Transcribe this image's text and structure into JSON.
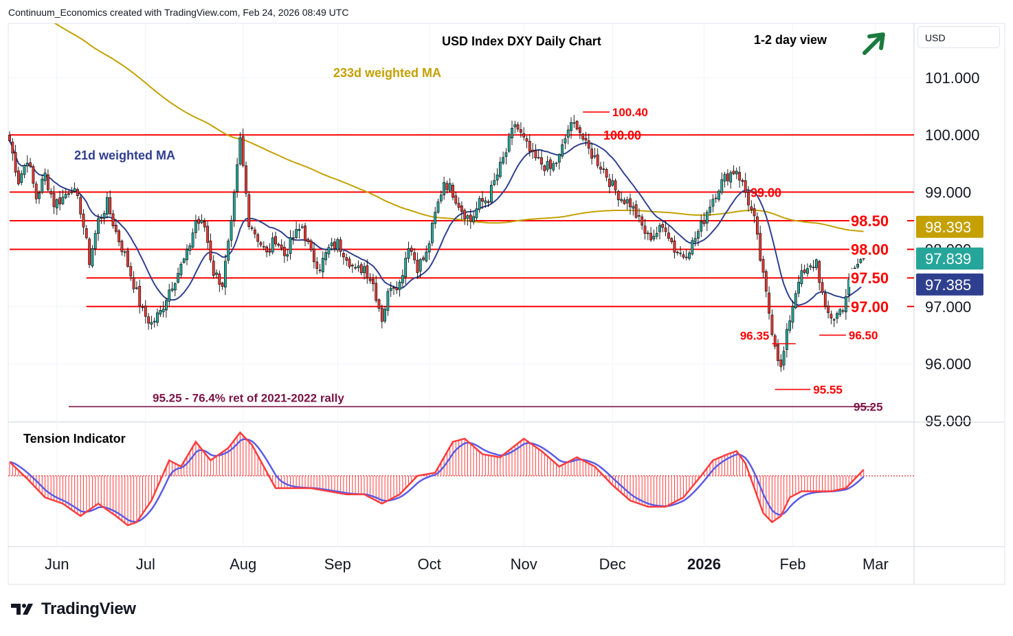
{
  "attribution": "Continuum_Economics created with TradingView.com, Feb 24, 2026 08:49 UTC",
  "brand": {
    "name": "TradingView",
    "logo_icon": "tradingview-logo-icon"
  },
  "symbol": "USD",
  "colors": {
    "up": "#26a69a",
    "down": "#e53935",
    "ma21": "#2f3f8f",
    "ma233": "#c4a000",
    "level": "#ff0000",
    "retrace": "#7b1245",
    "tension_fast": "#ff3b3b",
    "tension_slow": "#5a5ae6"
  },
  "chart_data": {
    "type": "candlestick",
    "title": "USD Index DXY Daily Chart",
    "view_label": "1-2 day view",
    "view_icon": "up-arrow-icon",
    "ylim": [
      95.0,
      101.7
    ],
    "y_ticks": [
      "101.000",
      "100.000",
      "99.000",
      "96.000",
      "95.000"
    ],
    "x_ticks": [
      {
        "label": "Jun",
        "i": 16,
        "bold": false
      },
      {
        "label": "Jul",
        "i": 46,
        "bold": false
      },
      {
        "label": "Aug",
        "i": 79,
        "bold": false
      },
      {
        "label": "Sep",
        "i": 111,
        "bold": false
      },
      {
        "label": "Oct",
        "i": 142,
        "bold": false
      },
      {
        "label": "Nov",
        "i": 174,
        "bold": false
      },
      {
        "label": "Dec",
        "i": 204,
        "bold": false
      },
      {
        "label": "2026",
        "i": 235,
        "bold": true
      },
      {
        "label": "Feb",
        "i": 265,
        "bold": false
      },
      {
        "label": "Mar",
        "i": 293,
        "bold": false
      }
    ],
    "price_badges": [
      {
        "value": "98.393",
        "bg": "#c4a000"
      },
      {
        "value": "97.839",
        "bg": "#26a69a"
      },
      {
        "value": "97.385",
        "bg": "#2f3f8f"
      }
    ],
    "levels": [
      {
        "value": 100.0,
        "label": "100.00",
        "i_start": 0,
        "label_side": "right",
        "label_at_axis": false
      },
      {
        "value": 99.0,
        "label": "99.00",
        "i_start": 0,
        "label_side": "right",
        "label_at_axis": false
      },
      {
        "value": 98.5,
        "label": "98.50",
        "i_start": 0,
        "label_side": "right",
        "label_at_axis": true
      },
      {
        "value": 98.0,
        "label": "98.00",
        "i_start": 0,
        "label_side": "right",
        "label_at_axis": true
      },
      {
        "value": 97.5,
        "label": "97.50",
        "i_start": 26,
        "label_side": "right",
        "label_at_axis": true
      },
      {
        "value": 97.0,
        "label": "97.00",
        "i_start": 26,
        "label_side": "right",
        "label_at_axis": true
      }
    ],
    "marks": [
      {
        "value": 100.4,
        "label": "100.40",
        "i_start": 194,
        "i_end": 203
      },
      {
        "value": 96.35,
        "label": "96.35",
        "i_start": 258,
        "i_end": 266,
        "label_left": true
      },
      {
        "value": 96.5,
        "label": "96.50",
        "i_start": 274,
        "i_end": 283
      },
      {
        "value": 95.55,
        "label": "95.55",
        "i_start": 259,
        "i_end": 271
      }
    ],
    "retracement": {
      "value": 95.25,
      "label": "95.25 - 76.4% ret of 2021-2022 rally",
      "axis_label": "95.25",
      "i_start": 20,
      "i_end": 292
    },
    "series": [
      {
        "name": "233d weighted MA",
        "label_i": 130,
        "label_value": 101.1
      },
      {
        "name": "21d weighted MA",
        "label_i": 33,
        "label_value": 99.65
      }
    ],
    "anchors": [
      [
        0,
        99.9
      ],
      [
        3,
        99.2
      ],
      [
        6,
        99.6
      ],
      [
        9,
        98.9
      ],
      [
        12,
        99.3
      ],
      [
        15,
        98.8
      ],
      [
        18,
        98.9
      ],
      [
        21,
        99.1
      ],
      [
        24,
        98.7
      ],
      [
        27,
        97.8
      ],
      [
        30,
        98.5
      ],
      [
        33,
        98.8
      ],
      [
        36,
        98.3
      ],
      [
        39,
        97.9
      ],
      [
        42,
        97.4
      ],
      [
        45,
        96.9
      ],
      [
        48,
        96.7
      ],
      [
        51,
        96.9
      ],
      [
        54,
        97.3
      ],
      [
        57,
        97.6
      ],
      [
        60,
        97.9
      ],
      [
        63,
        98.5
      ],
      [
        66,
        98.4
      ],
      [
        69,
        97.6
      ],
      [
        72,
        97.4
      ],
      [
        75,
        98.4
      ],
      [
        78,
        99.9
      ],
      [
        81,
        98.5
      ],
      [
        84,
        98.2
      ],
      [
        87,
        97.9
      ],
      [
        90,
        98.2
      ],
      [
        93,
        97.9
      ],
      [
        96,
        98.2
      ],
      [
        99,
        98.4
      ],
      [
        102,
        97.9
      ],
      [
        105,
        97.7
      ],
      [
        108,
        98.0
      ],
      [
        111,
        98.1
      ],
      [
        114,
        97.9
      ],
      [
        117,
        97.6
      ],
      [
        120,
        97.7
      ],
      [
        123,
        97.4
      ],
      [
        126,
        96.8
      ],
      [
        129,
        97.4
      ],
      [
        132,
        97.4
      ],
      [
        135,
        98.1
      ],
      [
        138,
        97.7
      ],
      [
        141,
        97.9
      ],
      [
        144,
        98.6
      ],
      [
        147,
        99.2
      ],
      [
        150,
        99.0
      ],
      [
        153,
        98.7
      ],
      [
        156,
        98.5
      ],
      [
        159,
        98.8
      ],
      [
        162,
        98.9
      ],
      [
        165,
        99.3
      ],
      [
        168,
        99.7
      ],
      [
        171,
        100.2
      ],
      [
        174,
        99.9
      ],
      [
        177,
        99.6
      ],
      [
        180,
        99.5
      ],
      [
        183,
        99.4
      ],
      [
        186,
        99.6
      ],
      [
        189,
        100.1
      ],
      [
        192,
        100.2
      ],
      [
        195,
        99.8
      ],
      [
        198,
        99.6
      ],
      [
        201,
        99.4
      ],
      [
        204,
        99.1
      ],
      [
        207,
        98.9
      ],
      [
        210,
        98.8
      ],
      [
        213,
        98.5
      ],
      [
        216,
        98.2
      ],
      [
        219,
        98.3
      ],
      [
        222,
        98.4
      ],
      [
        225,
        98.0
      ],
      [
        228,
        97.9
      ],
      [
        231,
        98.1
      ],
      [
        234,
        98.4
      ],
      [
        237,
        98.8
      ],
      [
        240,
        99.1
      ],
      [
        243,
        99.3
      ],
      [
        246,
        99.4
      ],
      [
        249,
        99.0
      ],
      [
        252,
        98.5
      ],
      [
        255,
        97.5
      ],
      [
        258,
        96.6
      ],
      [
        261,
        95.9
      ],
      [
        264,
        96.8
      ],
      [
        267,
        97.5
      ],
      [
        270,
        97.6
      ],
      [
        273,
        97.8
      ],
      [
        276,
        96.9
      ],
      [
        279,
        96.8
      ],
      [
        282,
        97.0
      ],
      [
        285,
        97.6
      ],
      [
        288,
        97.8
      ],
      [
        289,
        97.84
      ]
    ]
  },
  "tension": {
    "title": "Tension Indicator",
    "anchors": [
      [
        0,
        0.45
      ],
      [
        6,
        -0.1
      ],
      [
        12,
        -0.7
      ],
      [
        18,
        -0.9
      ],
      [
        24,
        -1.3
      ],
      [
        30,
        -0.9
      ],
      [
        36,
        -1.3
      ],
      [
        40,
        -1.6
      ],
      [
        43,
        -1.5
      ],
      [
        48,
        -0.8
      ],
      [
        54,
        0.5
      ],
      [
        58,
        0.3
      ],
      [
        63,
        1.1
      ],
      [
        68,
        0.5
      ],
      [
        74,
        0.9
      ],
      [
        78,
        1.4
      ],
      [
        82,
        1.0
      ],
      [
        86,
        0.3
      ],
      [
        90,
        -0.4
      ],
      [
        96,
        -0.4
      ],
      [
        102,
        -0.4
      ],
      [
        108,
        -0.5
      ],
      [
        114,
        -0.6
      ],
      [
        120,
        -0.6
      ],
      [
        126,
        -0.9
      ],
      [
        132,
        -0.6
      ],
      [
        138,
        0.0
      ],
      [
        144,
        0.1
      ],
      [
        150,
        1.1
      ],
      [
        154,
        1.2
      ],
      [
        160,
        0.7
      ],
      [
        166,
        0.6
      ],
      [
        170,
        0.9
      ],
      [
        174,
        1.2
      ],
      [
        180,
        0.8
      ],
      [
        186,
        0.3
      ],
      [
        192,
        0.6
      ],
      [
        198,
        0.3
      ],
      [
        204,
        -0.3
      ],
      [
        210,
        -0.8
      ],
      [
        216,
        -1.0
      ],
      [
        222,
        -1.0
      ],
      [
        228,
        -0.7
      ],
      [
        234,
        0.0
      ],
      [
        238,
        0.5
      ],
      [
        243,
        0.7
      ],
      [
        246,
        0.8
      ],
      [
        249,
        0.4
      ],
      [
        252,
        -0.4
      ],
      [
        255,
        -1.2
      ],
      [
        258,
        -1.5
      ],
      [
        261,
        -1.3
      ],
      [
        264,
        -0.7
      ],
      [
        268,
        -0.5
      ],
      [
        273,
        -0.5
      ],
      [
        278,
        -0.5
      ],
      [
        283,
        -0.4
      ],
      [
        286,
        -0.1
      ],
      [
        289,
        0.2
      ]
    ]
  }
}
